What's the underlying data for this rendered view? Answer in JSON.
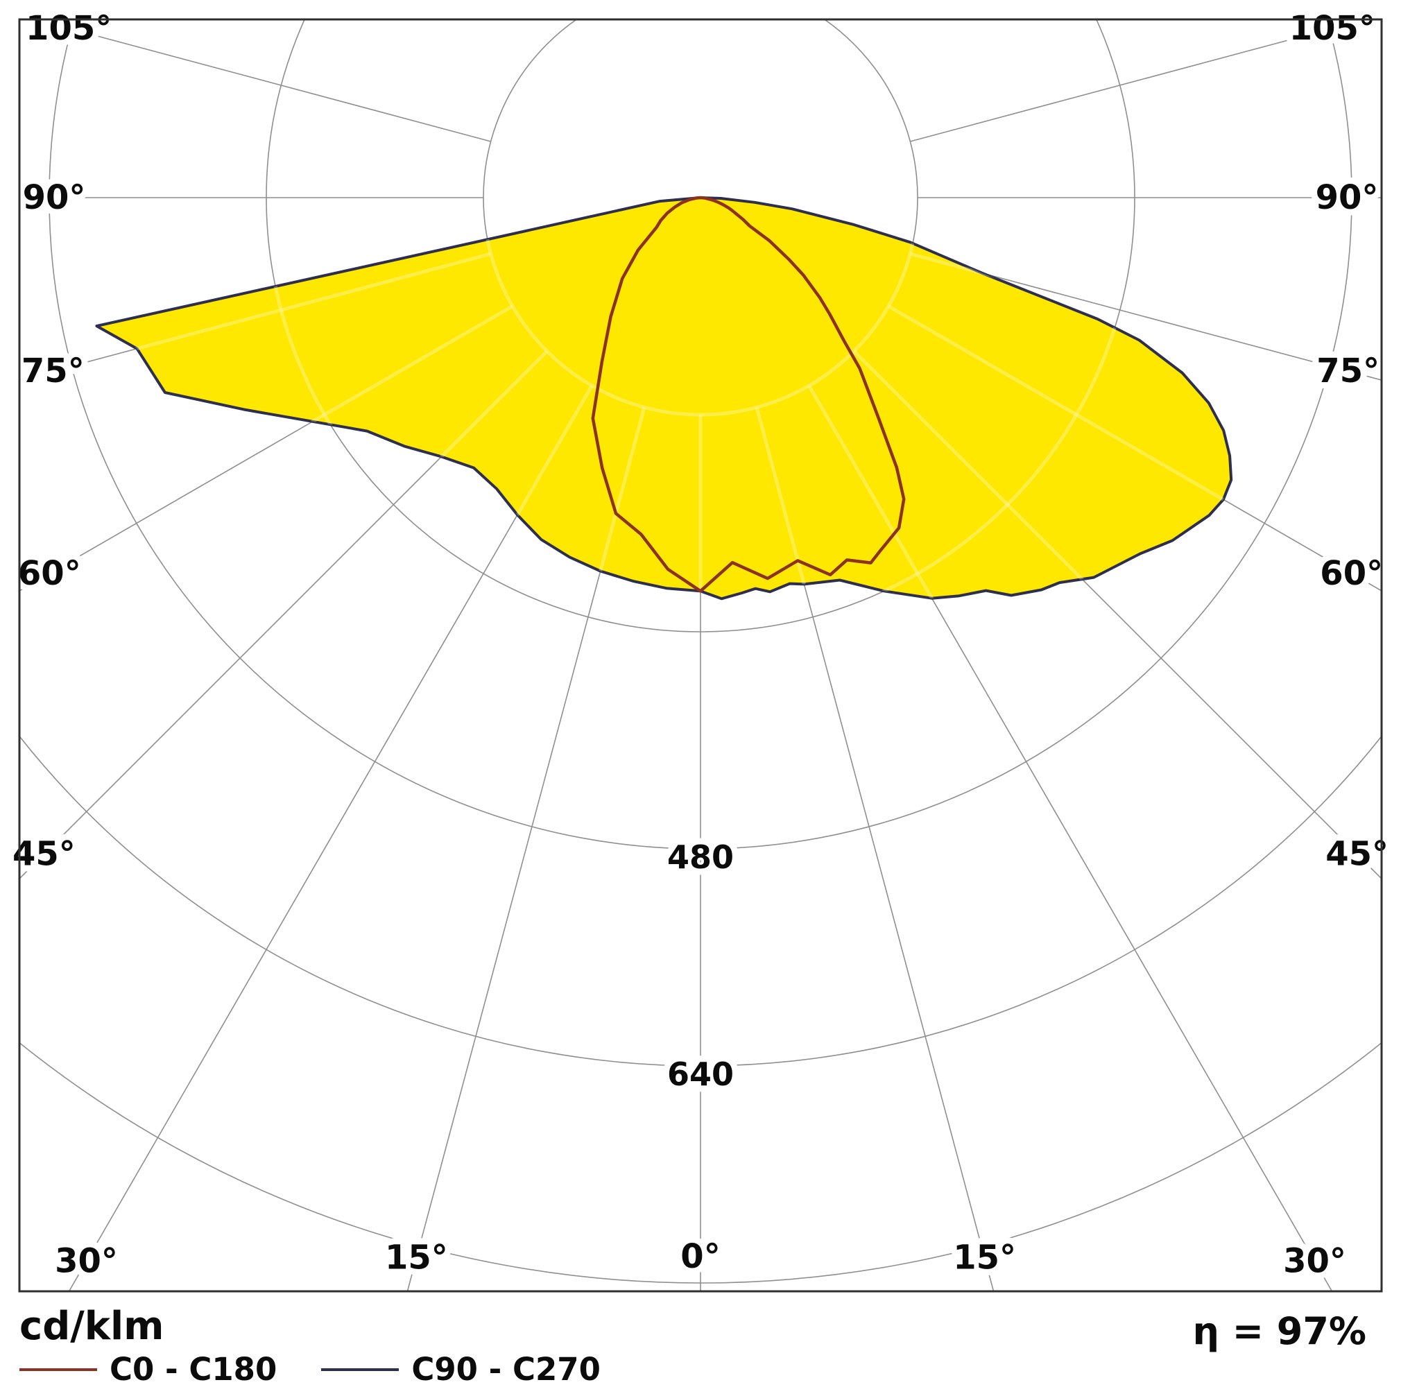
{
  "footer": {
    "unit_label": "cd/klm",
    "efficiency": "η = 97%"
  },
  "colors": {
    "background": "#ffffff",
    "frame": "#2f2f2f",
    "grid": "#8f8f8f",
    "text": "#0b0b0b",
    "fill_yellow": "#FFE800",
    "grid_over_fill": "#ffffff",
    "c0_c180": "#8B3222",
    "c90_c270": "#2E2E4E"
  },
  "chart_data": {
    "type": "polar_photometric",
    "unit": "cd/klm",
    "efficiency_percent": 97,
    "efficiency_label": "η = 97%",
    "angle_ticks_deg": [
      0,
      15,
      30,
      45,
      60,
      75,
      90,
      105
    ],
    "angle_tick_labels": [
      "0°",
      "15°",
      "30°",
      "45°",
      "60°",
      "75°",
      "90°",
      "105°"
    ],
    "ring_step": 160,
    "ring_values": [
      160,
      320,
      480,
      640,
      800
    ],
    "ring_label_values": [
      480,
      640
    ],
    "ring_labels": [
      "480",
      "640"
    ],
    "rlim": [
      0,
      800
    ],
    "legend_position": "bottom",
    "series": [
      {
        "name": "C0 - C180",
        "color": "#8B3222",
        "points": [
          [
            -90,
            0
          ],
          [
            -85,
            3
          ],
          [
            -80,
            8
          ],
          [
            -75,
            14
          ],
          [
            -70,
            20
          ],
          [
            -65,
            27
          ],
          [
            -60,
            34
          ],
          [
            -56,
            39
          ],
          [
            -50,
            60
          ],
          [
            -44,
            83
          ],
          [
            -37,
            110
          ],
          [
            -31,
            141
          ],
          [
            -26,
            181
          ],
          [
            -20,
            212
          ],
          [
            -15,
            241
          ],
          [
            -10,
            252
          ],
          [
            -5,
            275
          ],
          [
            0,
            290
          ],
          [
            5,
            270
          ],
          [
            10,
            285
          ],
          [
            15,
            277
          ],
          [
            19,
            294
          ],
          [
            22,
            288
          ],
          [
            25,
            297
          ],
          [
            27,
            292
          ],
          [
            31,
            284
          ],
          [
            34,
            268
          ],
          [
            36,
            246
          ],
          [
            39,
            208
          ],
          [
            43,
            172
          ],
          [
            45,
            150
          ],
          [
            48,
            128
          ],
          [
            50,
            115
          ],
          [
            53,
            95
          ],
          [
            55,
            80
          ],
          [
            58,
            60
          ],
          [
            60,
            42
          ],
          [
            63,
            35
          ],
          [
            65,
            30
          ],
          [
            68,
            25
          ],
          [
            70,
            22
          ],
          [
            73,
            17
          ],
          [
            75,
            14
          ],
          [
            78,
            10
          ],
          [
            80,
            7
          ],
          [
            83,
            4
          ],
          [
            85,
            3
          ],
          [
            90,
            0
          ]
        ]
      },
      {
        "name": "C90 - C270",
        "color": "#2E2E4E",
        "fill": "#FFE800",
        "points": [
          [
            -90,
            0
          ],
          [
            -85,
            30
          ],
          [
            -80,
            90
          ],
          [
            -78,
            455
          ],
          [
            -75,
            430
          ],
          [
            -70,
            420
          ],
          [
            -65,
            370
          ],
          [
            -60,
            330
          ],
          [
            -55,
            300
          ],
          [
            -50,
            285
          ],
          [
            -45,
            270
          ],
          [
            -40,
            260
          ],
          [
            -35,
            262
          ],
          [
            -30,
            270
          ],
          [
            -25,
            278
          ],
          [
            -20,
            282
          ],
          [
            -15,
            285
          ],
          [
            -10,
            287
          ],
          [
            -5,
            289
          ],
          [
            0,
            290
          ],
          [
            3,
            296
          ],
          [
            6,
            293
          ],
          [
            8,
            291
          ],
          [
            10,
            295
          ],
          [
            13,
            292
          ],
          [
            15,
            295
          ],
          [
            20,
            300
          ],
          [
            25,
            320
          ],
          [
            30,
            341
          ],
          [
            33,
            350
          ],
          [
            36,
            358
          ],
          [
            38,
            372
          ],
          [
            41,
            383
          ],
          [
            43,
            388
          ],
          [
            46,
            403
          ],
          [
            51,
            417
          ],
          [
            54,
            430
          ],
          [
            58,
            442
          ],
          [
            60,
            445
          ],
          [
            62,
            443
          ],
          [
            64,
            434
          ],
          [
            66,
            422
          ],
          [
            68,
            404
          ],
          [
            70,
            378
          ],
          [
            72,
            340
          ],
          [
            73,
            306
          ],
          [
            75,
            215
          ],
          [
            78,
            158
          ],
          [
            80,
            115
          ],
          [
            83,
            68
          ],
          [
            85,
            40
          ],
          [
            88,
            15
          ],
          [
            90,
            0
          ]
        ]
      }
    ]
  }
}
